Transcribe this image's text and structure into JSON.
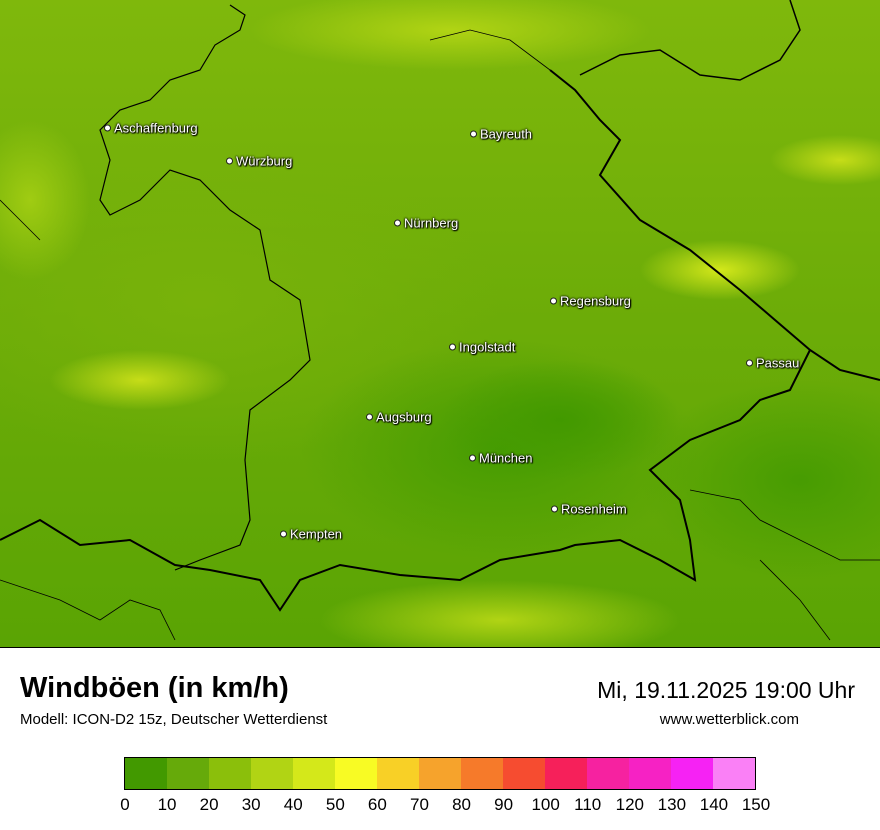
{
  "title": "Windböen (in km/h)",
  "subtitle": "Modell: ICON-D2 15z, Deutscher Wetterdienst",
  "datetime": "Mi, 19.11.2025 19:00 Uhr",
  "website": "www.wetterblick.com",
  "cities": [
    "Aschaffenburg",
    "Würzburg",
    "Bayreuth",
    "Nürnberg",
    "Regensburg",
    "Ingolstadt",
    "Passau",
    "Augsburg",
    "München",
    "Rosenheim",
    "Kempten"
  ],
  "legend": {
    "unit": "km/h",
    "ticks": [
      "0",
      "10",
      "20",
      "30",
      "40",
      "50",
      "60",
      "70",
      "80",
      "90",
      "100",
      "110",
      "120",
      "130",
      "140",
      "150"
    ],
    "colors": [
      "#429900",
      "#66aa0a",
      "#8bbf0b",
      "#b1d414",
      "#d4e81a",
      "#f8fb24",
      "#f8d026",
      "#f6a32c",
      "#f67a2a",
      "#f64c30",
      "#f6205a",
      "#f622a0",
      "#f622c4",
      "#f622f4",
      "#fa80f6"
    ]
  }
}
